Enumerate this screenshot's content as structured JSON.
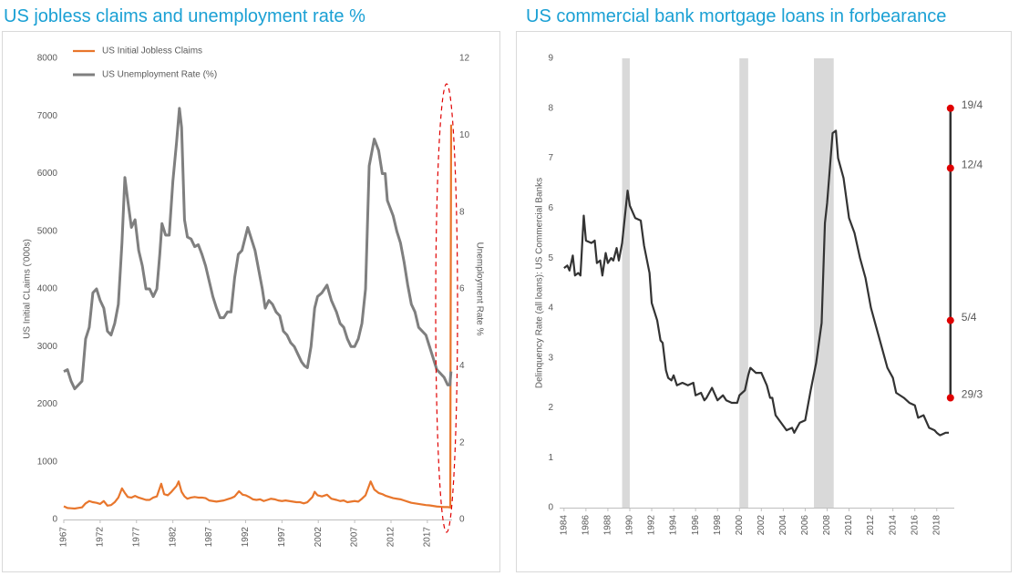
{
  "chart_data": [
    {
      "type": "line",
      "title": "US jobless claims and unemployment rate %",
      "ylabel": "US Initial CLaims ('000s)",
      "y2label": "Unemployment Rate %",
      "xlim": [
        1967,
        2020.4
      ],
      "xticks": [
        1967,
        1972,
        1977,
        1982,
        1987,
        1992,
        1997,
        2002,
        2007,
        2012,
        2017
      ],
      "ylim": [
        0,
        8000
      ],
      "yticks": [
        0,
        1000,
        2000,
        3000,
        4000,
        5000,
        6000,
        7000,
        8000
      ],
      "y2lim": [
        0,
        12
      ],
      "y2ticks": [
        0,
        2,
        4,
        6,
        8,
        10,
        12
      ],
      "y2color": "#e8762c",
      "grid": false,
      "legend": "top-left",
      "series": [
        {
          "name": "US Initial Jobless Claims",
          "color": "#e8762c",
          "x": [
            1967,
            1967.5,
            1968,
            1968.5,
            1969,
            1969.5,
            1970,
            1970.5,
            1971,
            1971.5,
            1972,
            1972.5,
            1973,
            1973.5,
            1974,
            1974.5,
            1975,
            1975.4,
            1975.8,
            1976.3,
            1976.8,
            1977.3,
            1977.8,
            1978.3,
            1978.8,
            1979.3,
            1979.8,
            1980.4,
            1980.8,
            1981.3,
            1981.8,
            1982.5,
            1982.8,
            1983.2,
            1983.6,
            1984,
            1984.5,
            1985,
            1985.5,
            1986,
            1986.5,
            1987,
            1987.5,
            1988,
            1988.5,
            1989,
            1989.5,
            1990,
            1990.5,
            1991.1,
            1991.6,
            1992,
            1992.5,
            1993,
            1993.5,
            1994,
            1994.5,
            1995,
            1995.5,
            1996,
            1996.5,
            1997,
            1997.5,
            1998,
            1998.5,
            1999,
            1999.5,
            2000,
            2000.5,
            2001.2,
            2001.5,
            2001.9,
            2002.5,
            2003.2,
            2003.8,
            2004.5,
            2005,
            2005.5,
            2006,
            2006.5,
            2007,
            2007.5,
            2008,
            2008.5,
            2009.2,
            2009.7,
            2010.3,
            2010.8,
            2011.3,
            2011.8,
            2012.3,
            2012.8,
            2013.3,
            2013.8,
            2014.3,
            2014.8,
            2015.3,
            2015.8,
            2016.3,
            2016.8,
            2017.3,
            2017.8,
            2018.3,
            2018.8,
            2019.3,
            2019.8,
            2020.15,
            2020.2,
            2020.27
          ],
          "values": [
            230,
            200,
            195,
            190,
            200,
            210,
            280,
            320,
            300,
            290,
            270,
            320,
            240,
            250,
            300,
            380,
            540,
            460,
            390,
            380,
            410,
            380,
            360,
            340,
            340,
            380,
            400,
            620,
            440,
            420,
            480,
            580,
            660,
            480,
            400,
            360,
            380,
            390,
            380,
            380,
            370,
            330,
            320,
            310,
            320,
            330,
            350,
            370,
            400,
            490,
            430,
            420,
            390,
            350,
            340,
            350,
            320,
            340,
            360,
            350,
            330,
            320,
            330,
            320,
            310,
            300,
            300,
            280,
            300,
            390,
            480,
            420,
            400,
            430,
            360,
            340,
            320,
            330,
            300,
            310,
            320,
            310,
            360,
            420,
            660,
            520,
            460,
            440,
            410,
            390,
            370,
            360,
            350,
            330,
            310,
            290,
            280,
            270,
            260,
            250,
            245,
            235,
            225,
            220,
            215,
            215,
            210,
            3300,
            6850
          ]
        },
        {
          "name": "US Unemployment Rate (%)",
          "color": "#7f7f7f",
          "axis": "y2",
          "x": [
            1967,
            1967.5,
            1968,
            1968.5,
            1969,
            1969.5,
            1970,
            1970.5,
            1971,
            1971.5,
            1972,
            1972.5,
            1973,
            1973.5,
            1974,
            1974.5,
            1975,
            1975.4,
            1975.8,
            1976.3,
            1976.8,
            1977.3,
            1977.8,
            1978.3,
            1978.8,
            1979.3,
            1979.8,
            1980.2,
            1980.5,
            1981,
            1981.5,
            1982,
            1982.5,
            1982.9,
            1983.2,
            1983.6,
            1984,
            1984.5,
            1985,
            1985.5,
            1986,
            1986.5,
            1987,
            1987.5,
            1988,
            1988.5,
            1989,
            1989.5,
            1990,
            1990.5,
            1991,
            1991.5,
            1992.3,
            1992.8,
            1993.3,
            1993.8,
            1994.3,
            1994.7,
            1995.2,
            1995.7,
            1996.2,
            1996.7,
            1997.2,
            1997.7,
            1998.2,
            1998.7,
            1999.2,
            1999.7,
            2000.1,
            2000.5,
            2001,
            2001.5,
            2001.9,
            2002.5,
            2003.2,
            2003.8,
            2004.5,
            2005,
            2005.5,
            2006,
            2006.5,
            2007,
            2007.5,
            2008,
            2008.5,
            2009,
            2009.7,
            2010.3,
            2010.8,
            2011.2,
            2011.5,
            2012.3,
            2012.8,
            2013.3,
            2013.8,
            2014.3,
            2014.8,
            2015.3,
            2015.8,
            2016.3,
            2016.8,
            2017.3,
            2017.8,
            2018.3,
            2018.8,
            2019.3,
            2019.8,
            2020.1,
            2020.25
          ],
          "values": [
            3.85,
            3.9,
            3.6,
            3.4,
            3.5,
            3.6,
            4.7,
            5.0,
            5.9,
            6.0,
            5.7,
            5.5,
            4.9,
            4.8,
            5.1,
            5.6,
            7.2,
            8.9,
            8.3,
            7.6,
            7.8,
            7.0,
            6.6,
            6.0,
            6.0,
            5.8,
            6.0,
            6.9,
            7.7,
            7.4,
            7.4,
            8.8,
            9.8,
            10.7,
            10.2,
            7.8,
            7.35,
            7.3,
            7.1,
            7.15,
            6.9,
            6.6,
            6.2,
            5.8,
            5.5,
            5.25,
            5.25,
            5.4,
            5.4,
            6.3,
            6.9,
            7.0,
            7.6,
            7.3,
            7.0,
            6.5,
            6.0,
            5.5,
            5.7,
            5.6,
            5.4,
            5.3,
            4.9,
            4.8,
            4.6,
            4.5,
            4.3,
            4.1,
            4.0,
            3.95,
            4.5,
            5.5,
            5.8,
            5.9,
            6.1,
            5.7,
            5.4,
            5.1,
            5.0,
            4.7,
            4.5,
            4.5,
            4.7,
            5.1,
            6.0,
            9.2,
            9.9,
            9.6,
            9.0,
            9.0,
            8.3,
            7.9,
            7.5,
            7.2,
            6.7,
            6.1,
            5.6,
            5.4,
            5.0,
            4.9,
            4.8,
            4.5,
            4.2,
            3.9,
            3.8,
            3.7,
            3.5,
            3.5,
            3.85
          ]
        }
      ]
    },
    {
      "type": "line",
      "title": "US commercial bank mortgage loans in forbearance",
      "ylabel": "Delinquency Rate (all loans): US Commercial Banks",
      "xlim": [
        1983.6,
        2019.6
      ],
      "xticks": [
        1984,
        1986,
        1988,
        1990,
        1992,
        1994,
        1996,
        1998,
        2000,
        2002,
        2004,
        2006,
        2008,
        2010,
        2012,
        2014,
        2016,
        2018
      ],
      "ylim": [
        0,
        9
      ],
      "yticks": [
        0,
        1,
        2,
        3,
        4,
        5,
        6,
        7,
        8,
        9
      ],
      "grid": false,
      "shaded_ranges": [
        [
          1989.3,
          1990.0
        ],
        [
          2000.0,
          2000.8
        ],
        [
          2006.8,
          2008.6
        ]
      ],
      "shade_color": "#d9d9d9",
      "series": [
        {
          "color": "#333333",
          "x": [
            1984.0,
            1984.3,
            1984.5,
            1984.8,
            1985.0,
            1985.3,
            1985.5,
            1985.8,
            1986.0,
            1986.5,
            1986.8,
            1987.0,
            1987.3,
            1987.5,
            1987.8,
            1988.0,
            1988.3,
            1988.5,
            1988.8,
            1989.0,
            1989.3,
            1989.8,
            1990.0,
            1990.5,
            1991.0,
            1991.3,
            1991.8,
            1992.0,
            1992.5,
            1992.8,
            1993.0,
            1993.3,
            1993.5,
            1993.8,
            1994.0,
            1994.3,
            1994.8,
            1995.3,
            1995.8,
            1996.0,
            1996.5,
            1996.8,
            1997.0,
            1997.5,
            1998.0,
            1998.5,
            1998.8,
            1999.3,
            1999.8,
            2000.0,
            2000.5,
            2000.8,
            2001.0,
            2001.5,
            2002.0,
            2002.5,
            2002.8,
            2003.0,
            2003.3,
            2003.8,
            2004.3,
            2004.8,
            2005.0,
            2005.5,
            2006.0,
            2006.5,
            2007.0,
            2007.5,
            2007.8,
            2008.0,
            2008.5,
            2008.8,
            2009.0,
            2009.5,
            2010.0,
            2010.5,
            2011.0,
            2011.5,
            2012.0,
            2012.5,
            2013.0,
            2013.5,
            2014.0,
            2014.3,
            2015.0,
            2015.5,
            2016.0,
            2016.3,
            2016.8,
            2017.3,
            2017.8,
            2018.0,
            2018.3,
            2018.8,
            2019.1
          ],
          "values": [
            4.8,
            4.85,
            4.75,
            5.05,
            4.65,
            4.7,
            4.65,
            5.85,
            5.35,
            5.3,
            5.35,
            4.9,
            4.95,
            4.65,
            5.1,
            4.9,
            5.0,
            4.95,
            5.2,
            4.95,
            5.3,
            6.35,
            6.05,
            5.8,
            5.75,
            5.25,
            4.7,
            4.1,
            3.75,
            3.35,
            3.3,
            2.75,
            2.6,
            2.55,
            2.65,
            2.45,
            2.5,
            2.45,
            2.5,
            2.25,
            2.3,
            2.15,
            2.2,
            2.4,
            2.15,
            2.25,
            2.15,
            2.1,
            2.1,
            2.25,
            2.35,
            2.65,
            2.8,
            2.7,
            2.7,
            2.45,
            2.2,
            2.2,
            1.85,
            1.7,
            1.55,
            1.6,
            1.5,
            1.7,
            1.75,
            2.35,
            2.9,
            3.7,
            5.7,
            6.1,
            7.5,
            7.55,
            7.0,
            6.6,
            5.8,
            5.5,
            5.0,
            4.6,
            4.0,
            3.6,
            3.2,
            2.8,
            2.6,
            2.3,
            2.2,
            2.1,
            2.05,
            1.8,
            1.85,
            1.6,
            1.55,
            1.5,
            1.45,
            1.5,
            1.5
          ]
        }
      ],
      "markers": {
        "color": "#e00000",
        "line_color": "#333333",
        "label_color": "#c00000",
        "x": [
          2019.25,
          2019.25,
          2019.25,
          2019.25
        ],
        "values": [
          2.2,
          3.75,
          6.8,
          8.0
        ],
        "labels": [
          "29/3",
          "5/4",
          "12/4",
          "19/4"
        ]
      }
    }
  ]
}
